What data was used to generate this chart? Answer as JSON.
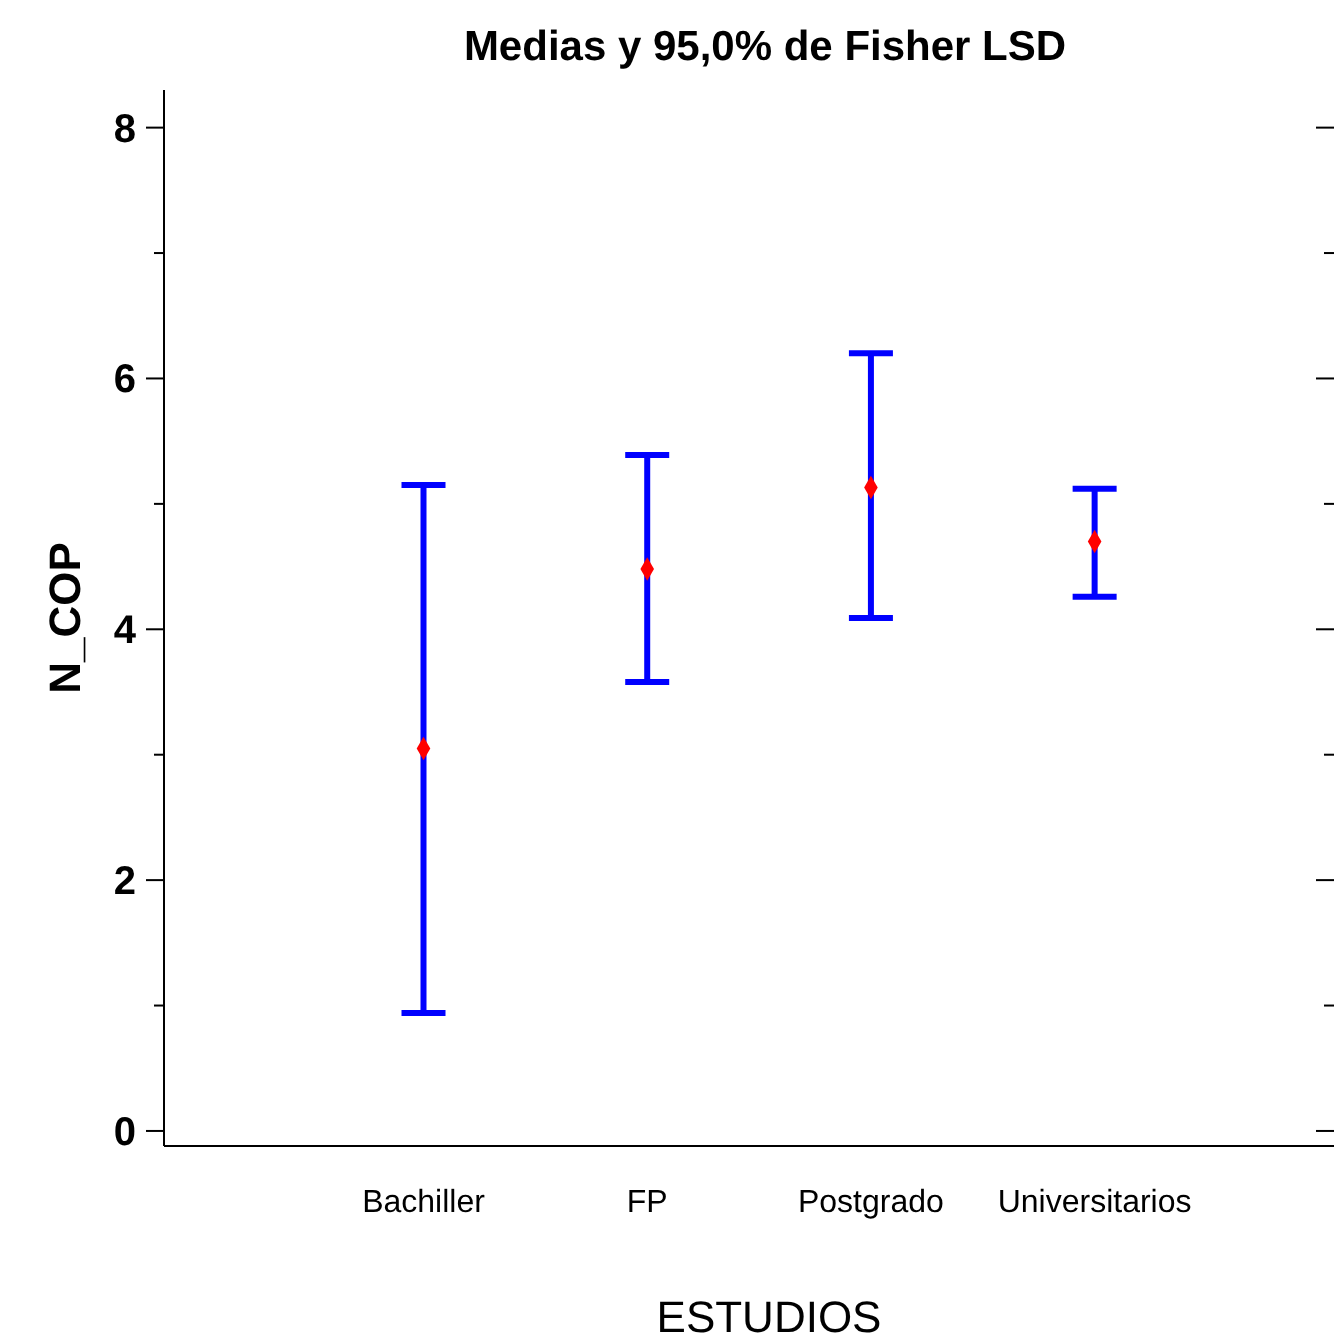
{
  "chart_data": {
    "type": "scatter",
    "title": "Medias y 95,0% de Fisher LSD",
    "xlabel": "ESTUDIOS",
    "ylabel": "N_COP",
    "categories": [
      "Bachiller",
      "FP",
      "Postgrado",
      "Universitarios"
    ],
    "series": [
      {
        "color": "#ff0000",
        "values": [
          3.05,
          4.48,
          5.13,
          4.7
        ],
        "errors": [
          [
            0.94,
            5.15
          ],
          [
            3.58,
            5.39
          ],
          [
            4.09,
            6.2
          ],
          [
            4.26,
            5.12
          ]
        ]
      }
    ],
    "ylim": [
      -0.12,
      8.3
    ],
    "yticks": [
      0,
      {
        "value": 1,
        "label": null
      },
      2,
      {
        "value": 3,
        "label": null
      },
      4,
      {
        "value": 5,
        "label": null
      },
      6,
      {
        "value": 7,
        "label": null
      },
      8
    ],
    "marker": "diamond",
    "grid": false
  }
}
